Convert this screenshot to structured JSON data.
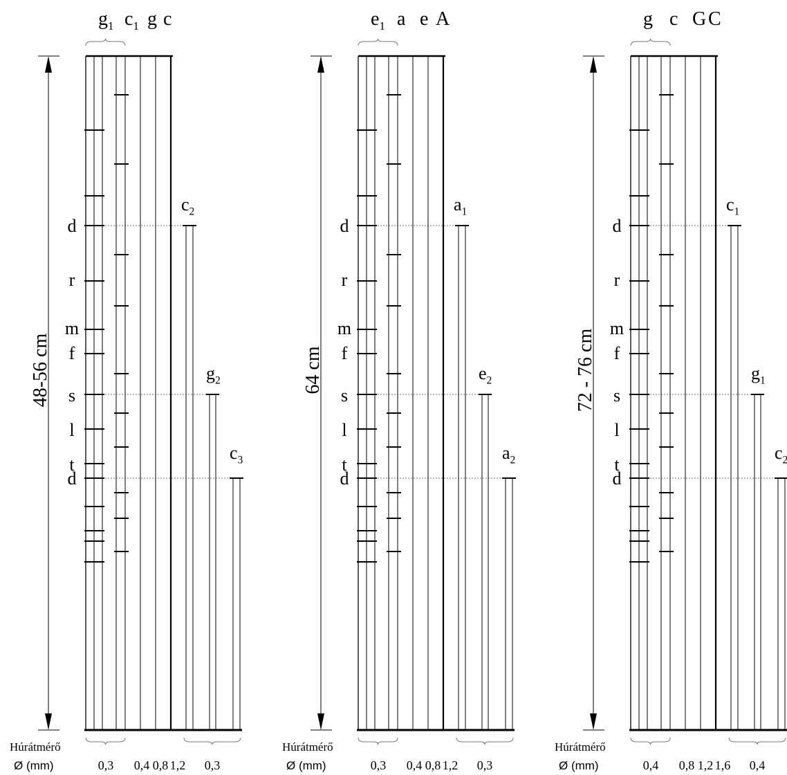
{
  "diameter_label": "Húrátmérő",
  "diameter_unit": "Ø (mm)",
  "panels": [
    {
      "length_label": "48-56 cm",
      "tuning_top": [
        {
          "base": "g",
          "sub": "1"
        },
        {
          "base": "c",
          "sub": "1"
        },
        {
          "base": "g",
          "sub": ""
        },
        {
          "base": "c",
          "sub": ""
        }
      ],
      "short_strings": [
        {
          "base": "c",
          "sub": "2"
        },
        {
          "base": "g",
          "sub": "2"
        },
        {
          "base": "c",
          "sub": "3"
        }
      ],
      "diameters": [
        "0,3",
        "0,4",
        "0,8",
        "1,2",
        "0,3"
      ]
    },
    {
      "length_label": "64 cm",
      "tuning_top": [
        {
          "base": "e",
          "sub": "1"
        },
        {
          "base": "a",
          "sub": ""
        },
        {
          "base": "e",
          "sub": ""
        },
        {
          "base": "A",
          "sub": ""
        }
      ],
      "short_strings": [
        {
          "base": "a",
          "sub": "1"
        },
        {
          "base": "e",
          "sub": "2"
        },
        {
          "base": "a",
          "sub": "2"
        }
      ],
      "diameters": [
        "0,3",
        "0,4",
        "0,8",
        "1,2",
        "0,3"
      ]
    },
    {
      "length_label": "72 - 76 cm",
      "tuning_top": [
        {
          "base": "g",
          "sub": ""
        },
        {
          "base": "c",
          "sub": ""
        },
        {
          "base": "G",
          "sub": ""
        },
        {
          "base": "C",
          "sub": ""
        }
      ],
      "short_strings": [
        {
          "base": "c",
          "sub": "1"
        },
        {
          "base": "g",
          "sub": "1"
        },
        {
          "base": "c",
          "sub": "2"
        }
      ],
      "diameters": [
        "0,4",
        "0,8",
        "1,2",
        "1,6",
        "0,4"
      ]
    }
  ],
  "solfege_labels": [
    "d",
    "r",
    "m",
    "f",
    "s",
    "l",
    "t",
    "d"
  ]
}
